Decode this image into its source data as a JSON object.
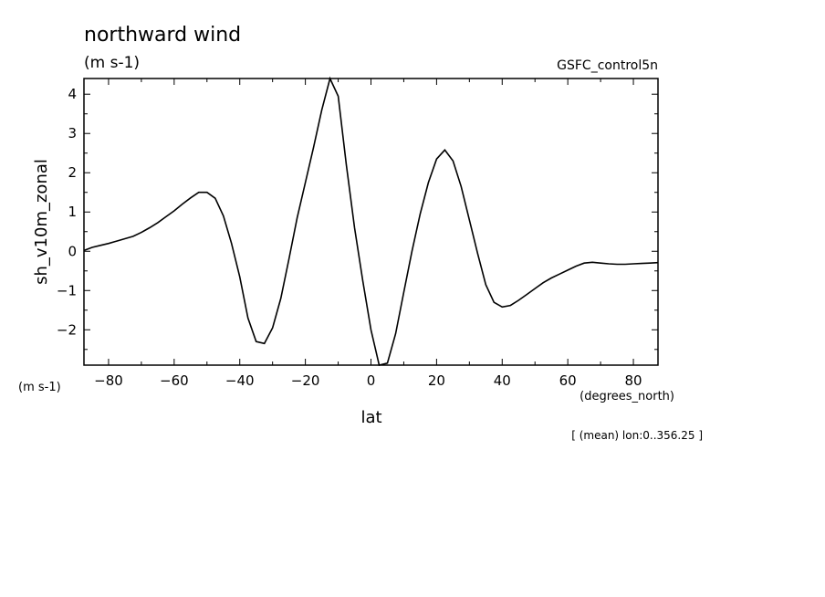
{
  "header": {
    "title": "northward wind",
    "units": "(m s-1)",
    "dataset": "GSFC_control5n"
  },
  "footer": {
    "yunits": "(m s-1)",
    "xunits": "(degrees_north)",
    "note": "[ (mean) lon:0..356.25 ]"
  },
  "chart_data": {
    "type": "line",
    "xlabel": "lat",
    "ylabel": "sh_v10m_zonal",
    "xlim": [
      -87.5,
      87.5
    ],
    "ylim": [
      -2.9,
      4.4
    ],
    "xticks": [
      -80,
      -60,
      -40,
      -20,
      0,
      20,
      40,
      60,
      80
    ],
    "yticks": [
      -2,
      -1,
      0,
      1,
      2,
      3,
      4
    ],
    "grid": false,
    "series": [
      {
        "x": [
          -87.5,
          -85,
          -82.5,
          -80,
          -77.5,
          -75,
          -72.5,
          -70,
          -67.5,
          -65,
          -62.5,
          -60,
          -57.5,
          -55,
          -52.5,
          -50,
          -47.5,
          -45,
          -42.5,
          -40,
          -37.5,
          -35,
          -32.5,
          -30,
          -27.5,
          -25,
          -22.5,
          -20,
          -17.5,
          -15,
          -12.5,
          -10,
          -7.5,
          -5,
          -2.5,
          0,
          2.5,
          5,
          7.5,
          10,
          12.5,
          15,
          17.5,
          20,
          22.5,
          25,
          27.5,
          30,
          32.5,
          35,
          37.5,
          40,
          42.5,
          45,
          47.5,
          50,
          52.5,
          55,
          57.5,
          60,
          62.5,
          65,
          67.5,
          70,
          72.5,
          75,
          77.5,
          80,
          82.5,
          85,
          87.5
        ],
        "y": [
          0.02,
          0.1,
          0.15,
          0.2,
          0.26,
          0.32,
          0.38,
          0.48,
          0.6,
          0.73,
          0.88,
          1.03,
          1.2,
          1.36,
          1.5,
          1.5,
          1.35,
          0.9,
          0.2,
          -0.65,
          -1.7,
          -2.3,
          -2.35,
          -1.95,
          -1.2,
          -0.2,
          0.85,
          1.75,
          2.65,
          3.6,
          4.4,
          3.95,
          2.2,
          0.6,
          -0.75,
          -2.0,
          -2.9,
          -2.85,
          -2.1,
          -1.05,
          0.0,
          0.95,
          1.75,
          2.35,
          2.58,
          2.3,
          1.65,
          0.8,
          -0.05,
          -0.85,
          -1.3,
          -1.42,
          -1.38,
          -1.25,
          -1.1,
          -0.95,
          -0.8,
          -0.68,
          -0.58,
          -0.48,
          -0.38,
          -0.3,
          -0.28,
          -0.3,
          -0.32,
          -0.33,
          -0.33,
          -0.32,
          -0.31,
          -0.3,
          -0.29
        ]
      }
    ]
  }
}
